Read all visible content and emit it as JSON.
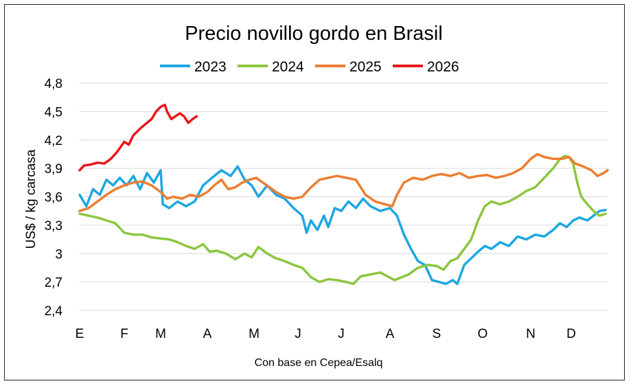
{
  "chart_data": {
    "type": "line",
    "title": "Precio novillo gordo en Brasil",
    "ylabel": "US$ / kg carcasa",
    "source": "Con base en Cepea/Esalq",
    "ylim": [
      2.4,
      4.8
    ],
    "yticks": [
      "2,4",
      "2,7",
      "3",
      "3,3",
      "3,6",
      "3,9",
      "4,2",
      "4,5",
      "4,8"
    ],
    "ytick_values": [
      2.4,
      2.7,
      3.0,
      3.3,
      3.6,
      3.9,
      4.2,
      4.5,
      4.8
    ],
    "xlim": [
      0,
      12
    ],
    "xticks": [
      "E",
      "F",
      "M",
      "A",
      "M",
      "J",
      "J",
      "A",
      "S",
      "O",
      "N",
      "D"
    ],
    "xtick_values": [
      0,
      1,
      1.8,
      2.9,
      3.9,
      4.9,
      5.9,
      6.9,
      7.9,
      8.9,
      10,
      10.9
    ],
    "grid": true,
    "legend_position": "top",
    "series": [
      {
        "name": "2023",
        "color": "#1ea7e1",
        "points": [
          [
            0,
            3.62
          ],
          [
            0.15,
            3.5
          ],
          [
            0.3,
            3.68
          ],
          [
            0.45,
            3.62
          ],
          [
            0.6,
            3.78
          ],
          [
            0.75,
            3.72
          ],
          [
            0.9,
            3.8
          ],
          [
            1.05,
            3.72
          ],
          [
            1.2,
            3.82
          ],
          [
            1.35,
            3.68
          ],
          [
            1.5,
            3.85
          ],
          [
            1.65,
            3.75
          ],
          [
            1.8,
            3.88
          ],
          [
            1.85,
            3.52
          ],
          [
            2.0,
            3.48
          ],
          [
            2.2,
            3.55
          ],
          [
            2.4,
            3.5
          ],
          [
            2.6,
            3.55
          ],
          [
            2.8,
            3.72
          ],
          [
            3.0,
            3.8
          ],
          [
            3.2,
            3.88
          ],
          [
            3.4,
            3.82
          ],
          [
            3.55,
            3.92
          ],
          [
            3.7,
            3.78
          ],
          [
            3.85,
            3.72
          ],
          [
            4.0,
            3.6
          ],
          [
            4.2,
            3.72
          ],
          [
            4.4,
            3.62
          ],
          [
            4.6,
            3.58
          ],
          [
            4.8,
            3.48
          ],
          [
            5.0,
            3.4
          ],
          [
            5.1,
            3.22
          ],
          [
            5.2,
            3.35
          ],
          [
            5.35,
            3.25
          ],
          [
            5.5,
            3.4
          ],
          [
            5.6,
            3.28
          ],
          [
            5.75,
            3.48
          ],
          [
            5.9,
            3.45
          ],
          [
            6.05,
            3.55
          ],
          [
            6.2,
            3.48
          ],
          [
            6.35,
            3.58
          ],
          [
            6.5,
            3.5
          ],
          [
            6.7,
            3.45
          ],
          [
            6.9,
            3.48
          ],
          [
            7.05,
            3.4
          ],
          [
            7.2,
            3.2
          ],
          [
            7.35,
            3.05
          ],
          [
            7.5,
            2.92
          ],
          [
            7.65,
            2.88
          ],
          [
            7.8,
            2.72
          ],
          [
            7.95,
            2.7
          ],
          [
            8.1,
            2.68
          ],
          [
            8.25,
            2.72
          ],
          [
            8.35,
            2.68
          ],
          [
            8.5,
            2.88
          ],
          [
            8.65,
            2.95
          ],
          [
            8.8,
            3.02
          ],
          [
            8.95,
            3.08
          ],
          [
            9.1,
            3.05
          ],
          [
            9.3,
            3.12
          ],
          [
            9.5,
            3.08
          ],
          [
            9.7,
            3.18
          ],
          [
            9.9,
            3.15
          ],
          [
            10.1,
            3.2
          ],
          [
            10.3,
            3.18
          ],
          [
            10.5,
            3.25
          ],
          [
            10.65,
            3.32
          ],
          [
            10.8,
            3.28
          ],
          [
            10.95,
            3.35
          ],
          [
            11.1,
            3.38
          ],
          [
            11.3,
            3.35
          ],
          [
            11.45,
            3.4
          ],
          [
            11.6,
            3.45
          ],
          [
            11.75,
            3.46
          ]
        ]
      },
      {
        "name": "2024",
        "color": "#8cc63f",
        "points": [
          [
            0,
            3.42
          ],
          [
            0.2,
            3.4
          ],
          [
            0.4,
            3.38
          ],
          [
            0.6,
            3.35
          ],
          [
            0.8,
            3.32
          ],
          [
            1.0,
            3.22
          ],
          [
            1.2,
            3.2
          ],
          [
            1.4,
            3.2
          ],
          [
            1.6,
            3.17
          ],
          [
            1.8,
            3.16
          ],
          [
            2.0,
            3.15
          ],
          [
            2.2,
            3.12
          ],
          [
            2.4,
            3.08
          ],
          [
            2.6,
            3.05
          ],
          [
            2.8,
            3.1
          ],
          [
            2.95,
            3.02
          ],
          [
            3.1,
            3.03
          ],
          [
            3.3,
            3.0
          ],
          [
            3.5,
            2.94
          ],
          [
            3.7,
            3.0
          ],
          [
            3.85,
            2.96
          ],
          [
            4.0,
            3.07
          ],
          [
            4.2,
            3.0
          ],
          [
            4.4,
            2.95
          ],
          [
            4.6,
            2.92
          ],
          [
            4.8,
            2.88
          ],
          [
            5.0,
            2.85
          ],
          [
            5.2,
            2.75
          ],
          [
            5.4,
            2.7
          ],
          [
            5.6,
            2.73
          ],
          [
            5.8,
            2.72
          ],
          [
            6.0,
            2.7
          ],
          [
            6.15,
            2.68
          ],
          [
            6.3,
            2.76
          ],
          [
            6.5,
            2.78
          ],
          [
            6.7,
            2.8
          ],
          [
            6.85,
            2.76
          ],
          [
            7.0,
            2.72
          ],
          [
            7.15,
            2.75
          ],
          [
            7.3,
            2.78
          ],
          [
            7.5,
            2.85
          ],
          [
            7.7,
            2.88
          ],
          [
            7.9,
            2.87
          ],
          [
            8.05,
            2.83
          ],
          [
            8.2,
            2.92
          ],
          [
            8.35,
            2.95
          ],
          [
            8.5,
            3.05
          ],
          [
            8.65,
            3.15
          ],
          [
            8.8,
            3.35
          ],
          [
            8.95,
            3.5
          ],
          [
            9.1,
            3.55
          ],
          [
            9.3,
            3.52
          ],
          [
            9.5,
            3.55
          ],
          [
            9.7,
            3.6
          ],
          [
            9.9,
            3.66
          ],
          [
            10.1,
            3.7
          ],
          [
            10.3,
            3.8
          ],
          [
            10.5,
            3.9
          ],
          [
            10.65,
            4.0
          ],
          [
            10.75,
            4.03
          ],
          [
            10.85,
            4.02
          ],
          [
            10.95,
            3.95
          ],
          [
            11.05,
            3.75
          ],
          [
            11.15,
            3.6
          ],
          [
            11.3,
            3.52
          ],
          [
            11.45,
            3.45
          ],
          [
            11.6,
            3.4
          ],
          [
            11.75,
            3.42
          ]
        ]
      },
      {
        "name": "2025",
        "color": "#ed7d31",
        "points": [
          [
            0,
            3.45
          ],
          [
            0.2,
            3.48
          ],
          [
            0.4,
            3.55
          ],
          [
            0.6,
            3.62
          ],
          [
            0.8,
            3.68
          ],
          [
            1.0,
            3.72
          ],
          [
            1.2,
            3.75
          ],
          [
            1.4,
            3.76
          ],
          [
            1.6,
            3.72
          ],
          [
            1.8,
            3.65
          ],
          [
            1.95,
            3.58
          ],
          [
            2.1,
            3.6
          ],
          [
            2.3,
            3.58
          ],
          [
            2.5,
            3.62
          ],
          [
            2.7,
            3.6
          ],
          [
            2.9,
            3.65
          ],
          [
            3.05,
            3.72
          ],
          [
            3.2,
            3.78
          ],
          [
            3.35,
            3.68
          ],
          [
            3.5,
            3.7
          ],
          [
            3.65,
            3.75
          ],
          [
            3.8,
            3.78
          ],
          [
            3.95,
            3.8
          ],
          [
            4.1,
            3.75
          ],
          [
            4.25,
            3.7
          ],
          [
            4.4,
            3.65
          ],
          [
            4.6,
            3.6
          ],
          [
            4.8,
            3.58
          ],
          [
            5.0,
            3.6
          ],
          [
            5.2,
            3.7
          ],
          [
            5.4,
            3.78
          ],
          [
            5.6,
            3.8
          ],
          [
            5.8,
            3.82
          ],
          [
            6.0,
            3.8
          ],
          [
            6.2,
            3.78
          ],
          [
            6.4,
            3.62
          ],
          [
            6.6,
            3.55
          ],
          [
            6.8,
            3.52
          ],
          [
            6.95,
            3.5
          ],
          [
            7.05,
            3.62
          ],
          [
            7.2,
            3.75
          ],
          [
            7.4,
            3.8
          ],
          [
            7.6,
            3.78
          ],
          [
            7.8,
            3.82
          ],
          [
            8.0,
            3.84
          ],
          [
            8.2,
            3.82
          ],
          [
            8.4,
            3.85
          ],
          [
            8.6,
            3.8
          ],
          [
            8.8,
            3.82
          ],
          [
            9.0,
            3.83
          ],
          [
            9.2,
            3.8
          ],
          [
            9.4,
            3.82
          ],
          [
            9.6,
            3.85
          ],
          [
            9.8,
            3.9
          ],
          [
            10.0,
            4.0
          ],
          [
            10.15,
            4.05
          ],
          [
            10.3,
            4.02
          ],
          [
            10.5,
            4.0
          ],
          [
            10.7,
            4.0
          ],
          [
            10.85,
            4.02
          ],
          [
            11.0,
            3.95
          ],
          [
            11.2,
            3.92
          ],
          [
            11.4,
            3.88
          ],
          [
            11.55,
            3.82
          ],
          [
            11.7,
            3.85
          ],
          [
            11.8,
            3.88
          ]
        ]
      },
      {
        "name": "2026",
        "color": "#e8161b",
        "points": [
          [
            0,
            3.88
          ],
          [
            0.1,
            3.93
          ],
          [
            0.25,
            3.94
          ],
          [
            0.4,
            3.96
          ],
          [
            0.55,
            3.95
          ],
          [
            0.7,
            4.0
          ],
          [
            0.85,
            4.08
          ],
          [
            1.0,
            4.18
          ],
          [
            1.1,
            4.15
          ],
          [
            1.2,
            4.25
          ],
          [
            1.35,
            4.32
          ],
          [
            1.5,
            4.38
          ],
          [
            1.6,
            4.42
          ],
          [
            1.7,
            4.5
          ],
          [
            1.8,
            4.55
          ],
          [
            1.9,
            4.57
          ],
          [
            1.95,
            4.5
          ],
          [
            2.05,
            4.42
          ],
          [
            2.15,
            4.45
          ],
          [
            2.25,
            4.48
          ],
          [
            2.35,
            4.45
          ],
          [
            2.45,
            4.38
          ],
          [
            2.55,
            4.42
          ],
          [
            2.65,
            4.45
          ]
        ]
      }
    ]
  }
}
